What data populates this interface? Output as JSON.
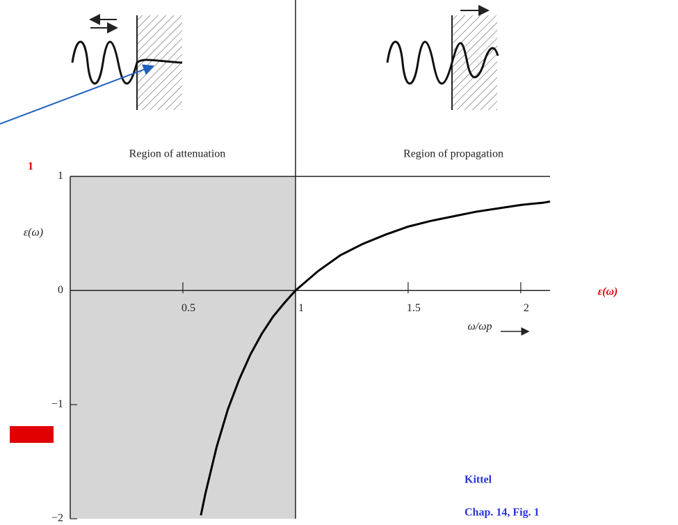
{
  "chart_data": {
    "type": "line",
    "region_labels": [
      "Region of attenuation",
      "Region of propagation"
    ],
    "y_label": "ε(ω)",
    "x_label": "ω/ωp",
    "annotations": [
      "1",
      "ε(ω)",
      "Kittel",
      "Chap. 14, Fig. 1"
    ],
    "x": [
      0.58,
      0.6,
      0.65,
      0.7,
      0.75,
      0.8,
      0.85,
      0.9,
      0.95,
      1,
      1.1,
      1.2,
      1.3,
      1.4,
      1.5,
      1.6,
      1.7,
      1.8,
      1.9,
      2.0,
      2.1,
      2.13
    ],
    "values": [
      -1.97,
      -1.78,
      -1.37,
      -1.04,
      -0.78,
      -0.56,
      -0.38,
      -0.23,
      -0.11,
      0,
      0.17,
      0.31,
      0.41,
      0.49,
      0.56,
      0.61,
      0.65,
      0.69,
      0.72,
      0.75,
      0.77,
      0.78
    ],
    "color": "#000000",
    "shaded_region": [
      0,
      1
    ],
    "shade_color": "#d6d6d6",
    "xlim": [
      0,
      2.13
    ],
    "ylim": [
      -2,
      1.1
    ],
    "xticks": [
      0.5,
      1,
      1.5,
      2
    ],
    "yticks": [
      {
        "value": -2,
        "label": "−2"
      },
      {
        "value": -1,
        "label": "−1"
      },
      0,
      1
    ]
  }
}
